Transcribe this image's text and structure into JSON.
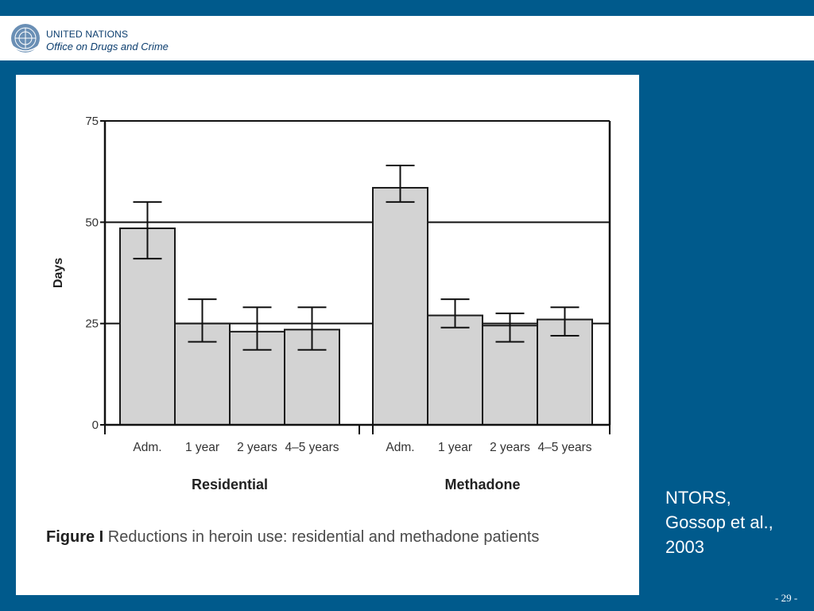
{
  "header": {
    "org_line1": "UNITED NATIONS",
    "org_line2": "Office on Drugs and Crime"
  },
  "colors": {
    "background": "#005a8c",
    "bar_fill": "#d3d3d3",
    "header_text": "#0b3d6e"
  },
  "chart_data": {
    "type": "bar",
    "ylabel": "Days",
    "ylim": [
      0,
      75
    ],
    "yticks": [
      "0",
      "25",
      "50",
      "75"
    ],
    "gridlines": [
      25,
      50,
      75
    ],
    "error_bars": true,
    "groups": [
      {
        "name": "Residential",
        "categories": [
          "Adm.",
          "1 year",
          "2 years",
          "4–5 years"
        ],
        "values": [
          48.5,
          25,
          23,
          23.5
        ],
        "error_low": [
          41,
          20.5,
          18.5,
          18.5
        ],
        "error_high": [
          55,
          31,
          29,
          29
        ]
      },
      {
        "name": "Methadone",
        "categories": [
          "Adm.",
          "1 year",
          "2 years",
          "4–5 years"
        ],
        "values": [
          58.5,
          27,
          24.5,
          26
        ],
        "error_low": [
          55,
          24,
          20.5,
          22
        ],
        "error_high": [
          64,
          31,
          27.5,
          29
        ]
      }
    ]
  },
  "caption": {
    "label": "Figure I",
    "text": "Reductions in heroin use: residential and methadone patients"
  },
  "source": [
    "NTORS,",
    "Gossop et al.,",
    "2003"
  ],
  "page_number": "- 29 -"
}
